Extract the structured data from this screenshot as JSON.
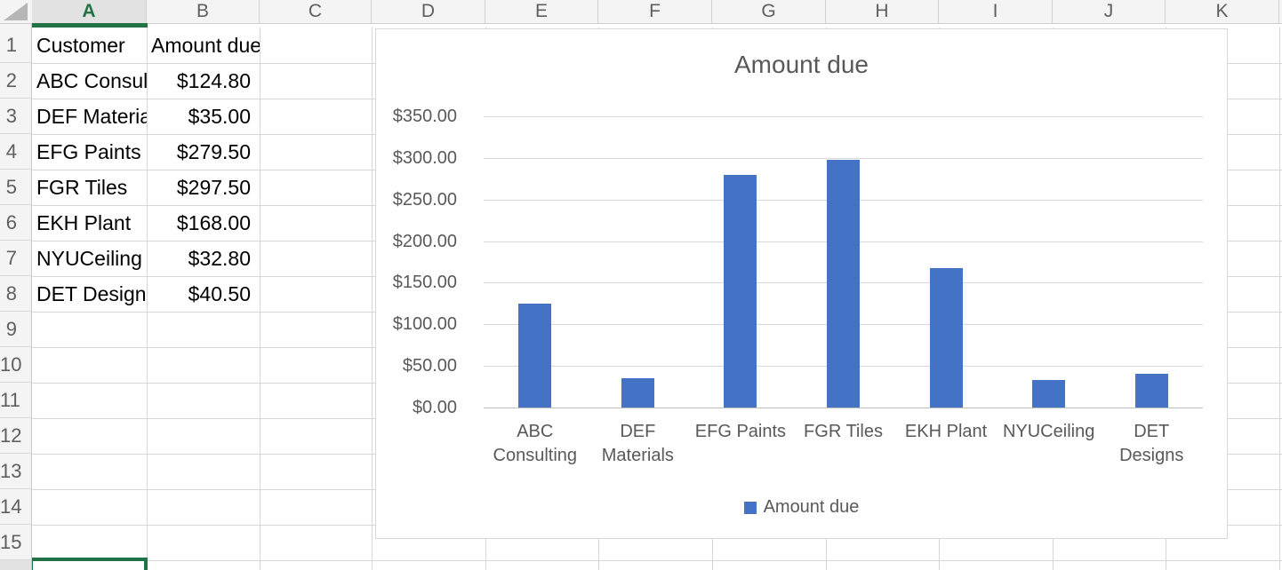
{
  "sheet": {
    "name": "spreadsheet-grid",
    "column_headers": [
      "A",
      "B",
      "C",
      "D",
      "E",
      "F",
      "G",
      "H",
      "I",
      "J",
      "K"
    ],
    "selected_column": "A",
    "row_count": 16,
    "active_cell": "A16",
    "table": {
      "headers": {
        "customer": "Customer",
        "amount": "Amount due"
      },
      "rows": [
        {
          "customer": "ABC Consulting",
          "amount": "$124.80"
        },
        {
          "customer": "DEF Materials",
          "amount": "$35.00"
        },
        {
          "customer": "EFG Paints",
          "amount": "$279.50"
        },
        {
          "customer": "FGR Tiles",
          "amount": "$297.50"
        },
        {
          "customer": "EKH Plant",
          "amount": "$168.00"
        },
        {
          "customer": "NYUCeiling",
          "amount": "$32.80"
        },
        {
          "customer": "DET Designs",
          "amount": "$40.50"
        }
      ]
    }
  },
  "chart_data": {
    "type": "bar",
    "title": "Amount due",
    "categories": [
      "ABC Consulting",
      "DEF Materials",
      "EFG Paints",
      "FGR Tiles",
      "EKH Plant",
      "NYUCeiling",
      "DET Designs"
    ],
    "series": [
      {
        "name": "Amount due",
        "values": [
          124.8,
          35.0,
          279.5,
          297.5,
          168.0,
          32.8,
          40.5
        ]
      }
    ],
    "xlabel": "",
    "ylabel": "",
    "ylim": [
      0,
      350
    ],
    "ytick_step": 50,
    "ytick_labels": [
      "$0.00",
      "$50.00",
      "$100.00",
      "$150.00",
      "$200.00",
      "$250.00",
      "$300.00",
      "$350.00"
    ],
    "grid": true,
    "legend": {
      "label": "Amount due",
      "position": "bottom"
    },
    "bar_color": "#4472C4",
    "text_color": "#595959"
  },
  "colors": {
    "accent_bar": "#4472C4",
    "selection_green": "#217346",
    "gridline": "#d6d6d6",
    "chart_gridline": "#d9d9d9",
    "header_bg": "#f4f4f4",
    "selected_header_bg": "#e2e2e2",
    "muted_text": "#595959"
  }
}
